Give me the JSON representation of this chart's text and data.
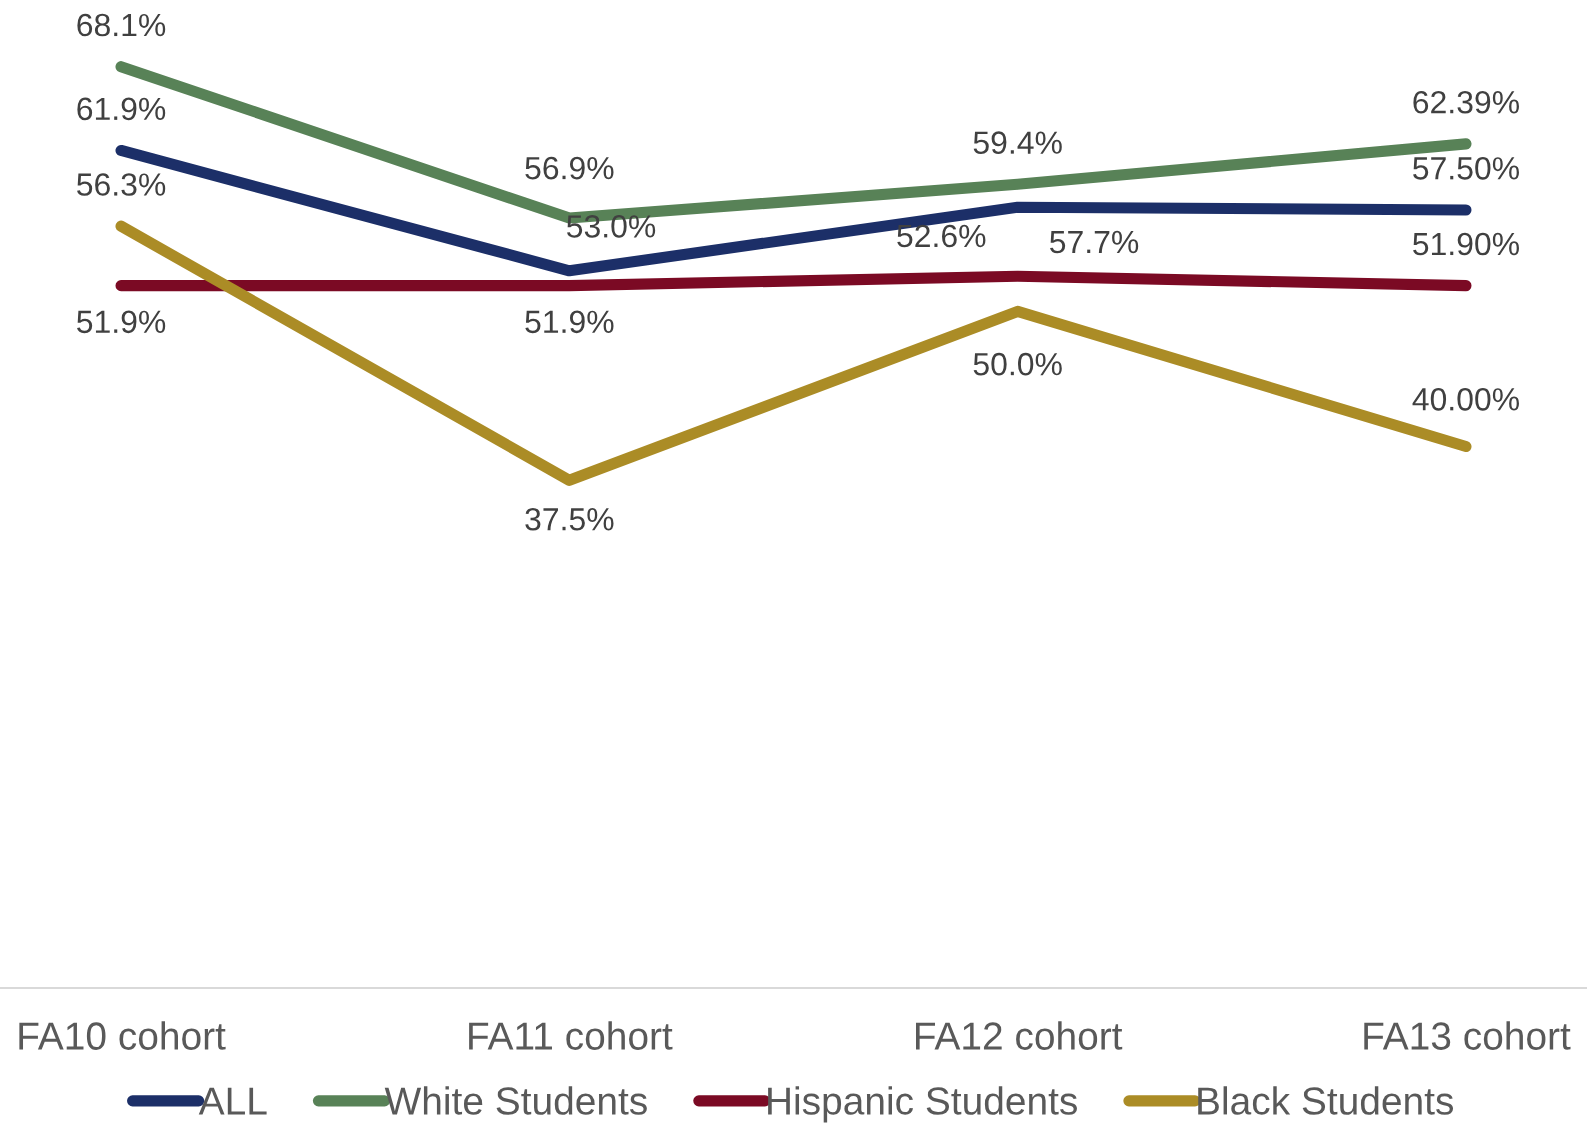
{
  "chart_data": {
    "type": "line",
    "categories": [
      "FA10 cohort",
      "FA11 cohort",
      "FA12 cohort",
      "FA13 cohort"
    ],
    "series": [
      {
        "name": "ALL",
        "color": "#1c2f68",
        "values": [
          61.9,
          53.0,
          57.7,
          57.5
        ],
        "value_labels": [
          "61.9%",
          "53.0%",
          "57.7%",
          "57.50%"
        ]
      },
      {
        "name": "White Students",
        "color": "#588257",
        "values": [
          68.1,
          56.9,
          59.4,
          62.39
        ],
        "value_labels": [
          "68.1%",
          "56.9%",
          "59.4%",
          "62.39%"
        ]
      },
      {
        "name": "Hispanic Students",
        "color": "#7b0a24",
        "values": [
          51.9,
          51.9,
          52.6,
          51.9
        ],
        "value_labels": [
          "51.9%",
          "51.9%",
          "52.6%",
          "51.90%"
        ]
      },
      {
        "name": "Black Students",
        "color": "#ab8c26",
        "values": [
          56.3,
          37.5,
          50.0,
          40.0
        ],
        "value_labels": [
          "56.3%",
          "37.5%",
          "50.0%",
          "40.00%"
        ]
      }
    ],
    "tick_labels": "x",
    "legend": "bottom",
    "line_style": "solid"
  }
}
